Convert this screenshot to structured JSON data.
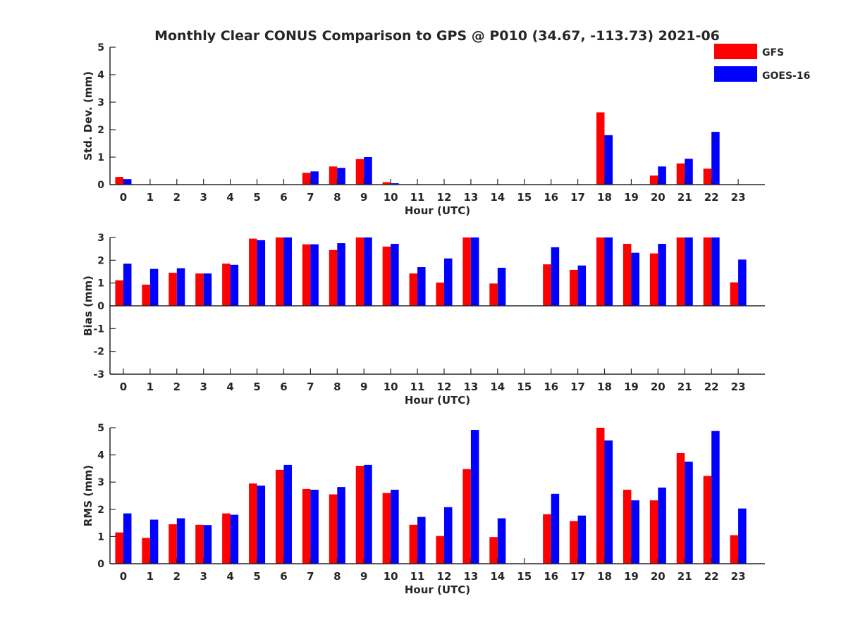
{
  "title": "Monthly Clear CONUS Comparison to GPS @ P010 (34.67, -113.73) 2021-06",
  "colors": {
    "gfs": "#ff0000",
    "goes": "#0000ff",
    "axis": "#262626"
  },
  "legend": {
    "placement": "top-right",
    "entries": [
      "GFS",
      "GOES-16"
    ]
  },
  "chart_data": [
    {
      "type": "bar",
      "panel": "std",
      "xlabel": "Hour (UTC)",
      "ylabel": "Std. Dev. (mm)",
      "ylim": [
        0,
        5
      ],
      "yticks": [
        0,
        1,
        2,
        3,
        4,
        5
      ],
      "categories": [
        "0",
        "1",
        "2",
        "3",
        "4",
        "5",
        "6",
        "7",
        "8",
        "9",
        "10",
        "11",
        "12",
        "13",
        "14",
        "15",
        "16",
        "17",
        "18",
        "19",
        "20",
        "21",
        "22",
        "23"
      ],
      "series": [
        {
          "name": "GFS",
          "color": "#ff0000",
          "values": [
            0.28,
            0,
            0,
            0,
            0,
            0,
            0,
            0.43,
            0.66,
            0.93,
            0.09,
            0,
            0,
            0,
            0,
            0,
            0,
            0,
            2.63,
            0,
            0.33,
            0.77,
            0.58,
            0
          ]
        },
        {
          "name": "GOES-16",
          "color": "#0000ff",
          "values": [
            0.2,
            0,
            0,
            0,
            0,
            0,
            0,
            0.48,
            0.61,
            1.0,
            0.05,
            0,
            0,
            0,
            0,
            0,
            0,
            0,
            1.8,
            0,
            0.66,
            0.94,
            1.92,
            0
          ]
        }
      ]
    },
    {
      "type": "bar",
      "panel": "bias",
      "xlabel": "Hour (UTC)",
      "ylabel": "Bias (mm)",
      "ylim": [
        -3,
        3
      ],
      "yticks": [
        -3,
        -2,
        -1,
        0,
        1,
        2,
        3
      ],
      "categories": [
        "0",
        "1",
        "2",
        "3",
        "4",
        "5",
        "6",
        "7",
        "8",
        "9",
        "10",
        "11",
        "12",
        "13",
        "14",
        "15",
        "16",
        "17",
        "18",
        "19",
        "20",
        "21",
        "22",
        "23"
      ],
      "series": [
        {
          "name": "GFS",
          "color": "#ff0000",
          "values": [
            1.12,
            0.93,
            1.45,
            1.42,
            1.85,
            2.95,
            3.0,
            2.7,
            2.45,
            3.0,
            2.6,
            1.42,
            1.02,
            3.0,
            0.98,
            0,
            1.82,
            1.58,
            3.0,
            2.72,
            2.3,
            3.0,
            3.0,
            1.03
          ]
        },
        {
          "name": "GOES-16",
          "color": "#0000ff",
          "values": [
            1.85,
            1.62,
            1.65,
            1.42,
            1.8,
            2.88,
            3.0,
            2.7,
            2.75,
            3.0,
            2.72,
            1.7,
            2.08,
            3.0,
            1.67,
            0,
            2.57,
            1.77,
            3.0,
            2.33,
            2.72,
            3.0,
            3.0,
            2.03
          ]
        }
      ]
    },
    {
      "type": "bar",
      "panel": "rms",
      "xlabel": "Hour (UTC)",
      "ylabel": "RMS (mm)",
      "ylim": [
        0,
        5
      ],
      "yticks": [
        0,
        1,
        2,
        3,
        4,
        5
      ],
      "categories": [
        "0",
        "1",
        "2",
        "3",
        "4",
        "5",
        "6",
        "7",
        "8",
        "9",
        "10",
        "11",
        "12",
        "13",
        "14",
        "15",
        "16",
        "17",
        "18",
        "19",
        "20",
        "21",
        "22",
        "23"
      ],
      "series": [
        {
          "name": "GFS",
          "color": "#ff0000",
          "values": [
            1.15,
            0.95,
            1.45,
            1.43,
            1.85,
            2.95,
            3.45,
            2.75,
            2.55,
            3.6,
            2.6,
            1.43,
            1.02,
            3.48,
            0.98,
            0,
            1.82,
            1.57,
            5.0,
            2.72,
            2.33,
            4.07,
            3.23,
            1.05
          ]
        },
        {
          "name": "GOES-16",
          "color": "#0000ff",
          "values": [
            1.85,
            1.62,
            1.67,
            1.42,
            1.8,
            2.87,
            3.63,
            2.72,
            2.82,
            3.63,
            2.72,
            1.72,
            2.08,
            4.92,
            1.67,
            0,
            2.57,
            1.77,
            4.53,
            2.33,
            2.8,
            3.75,
            4.88,
            2.03
          ]
        }
      ]
    }
  ]
}
